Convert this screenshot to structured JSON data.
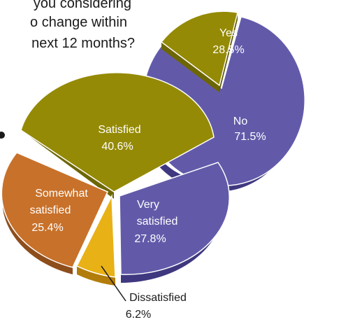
{
  "chart_data": [
    {
      "type": "pie",
      "title_lines": [
        "you considering",
        "o change within",
        "next 12 months?"
      ],
      "slices": [
        {
          "label": "Yes",
          "value": 28.5,
          "display": "28.5%",
          "color": "#958a05"
        },
        {
          "label": "No",
          "value": 71.5,
          "display": "71.5%",
          "color": "#625aa9"
        }
      ]
    },
    {
      "type": "pie",
      "slices": [
        {
          "label": "Satisfied",
          "value": 40.6,
          "display": "40.6%",
          "color": "#958a05"
        },
        {
          "label": "Very satisfied",
          "label_lines": [
            "Very",
            "satisfied"
          ],
          "value": 27.8,
          "display": "27.8%",
          "color": "#625aa9"
        },
        {
          "label": "Dissatisfied",
          "value": 6.2,
          "display": "6.2%",
          "color": "#e8b115"
        },
        {
          "label": "Somewhat satisfied",
          "label_lines": [
            "Somewhat",
            "satisfied"
          ],
          "value": 25.4,
          "display": "25.4%",
          "color": "#c8712a"
        }
      ]
    }
  ]
}
